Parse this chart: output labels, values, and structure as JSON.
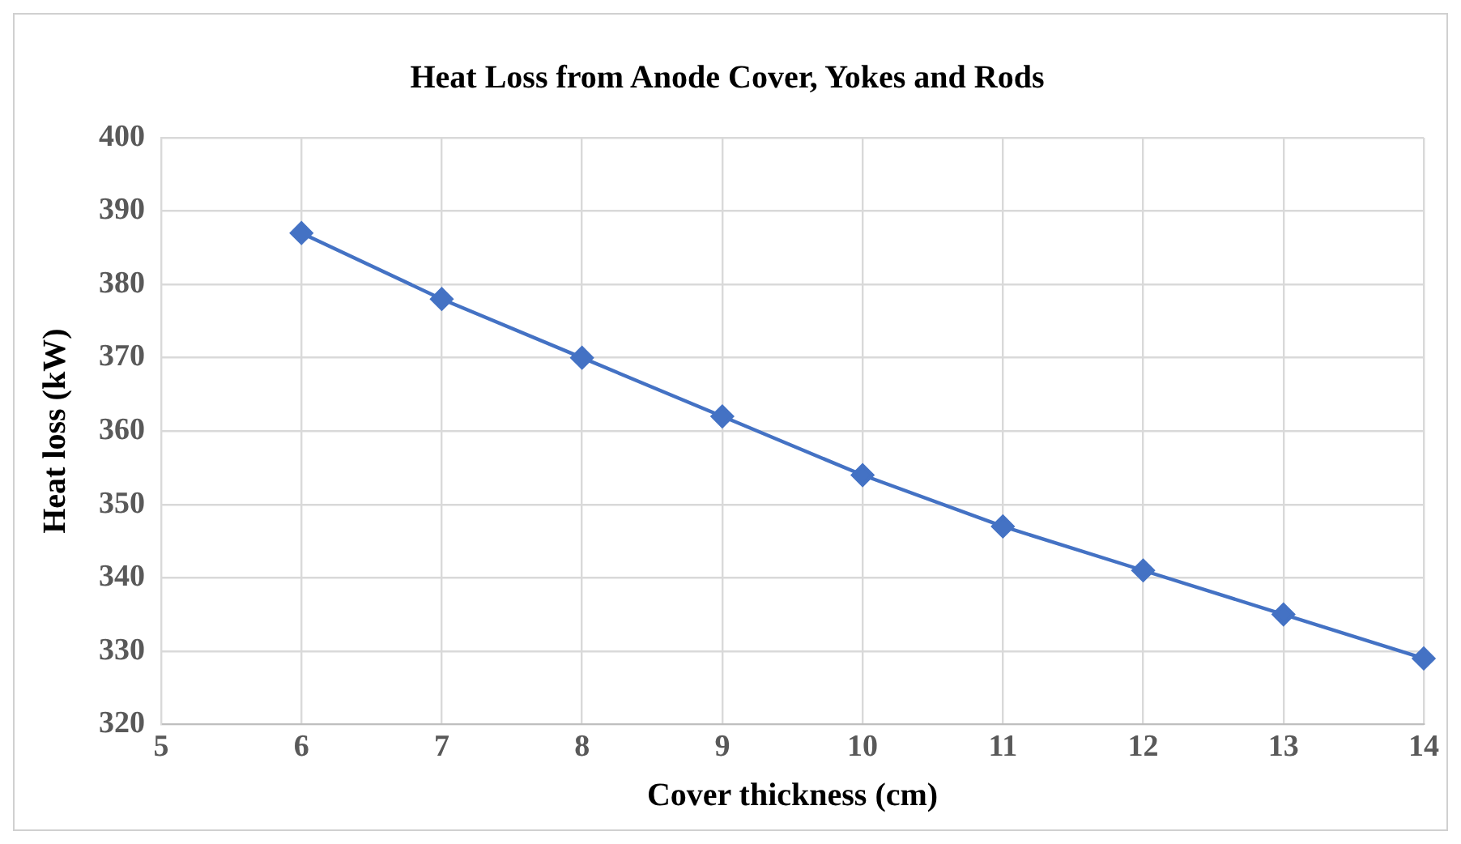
{
  "chart_data": {
    "type": "line",
    "title": "Heat Loss from Anode Cover, Yokes and Rods",
    "xlabel": "Cover thickness (cm)",
    "ylabel": "Heat loss (kW)",
    "x": [
      6,
      7,
      8,
      9,
      10,
      11,
      12,
      13,
      14
    ],
    "series": [
      {
        "color": "#4472c4",
        "values": [
          387,
          378,
          370,
          362,
          354,
          347,
          341,
          335,
          329
        ]
      }
    ],
    "xlim": [
      5,
      14
    ],
    "xticks": [
      5,
      6,
      7,
      8,
      9,
      10,
      11,
      12,
      13,
      14
    ],
    "ylim": [
      320,
      400
    ],
    "yticks": [
      320,
      330,
      340,
      350,
      360,
      370,
      380,
      390,
      400
    ],
    "grid": true,
    "legend": false,
    "marker": "diamond",
    "line_style": "solid"
  }
}
